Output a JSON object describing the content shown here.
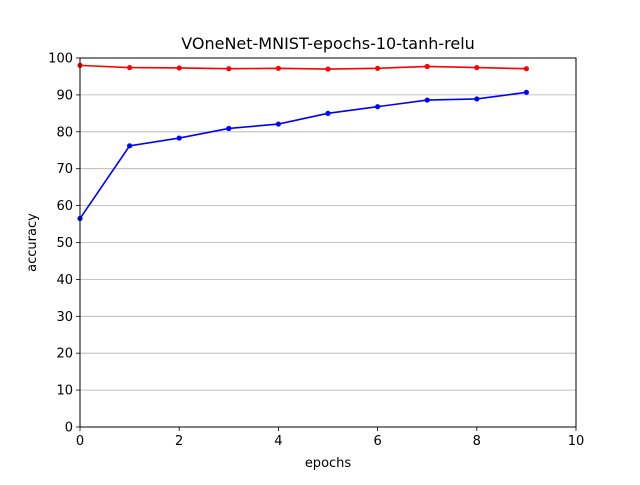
{
  "chart_data": {
    "type": "line",
    "title": "VOneNet-MNIST-epochs-10-tanh-relu",
    "xlabel": "epochs",
    "ylabel": "accuracy",
    "xlim": [
      0,
      10
    ],
    "ylim": [
      0,
      100
    ],
    "xticks": [
      0,
      2,
      4,
      6,
      8,
      10
    ],
    "yticks": [
      0,
      10,
      20,
      30,
      40,
      50,
      60,
      70,
      80,
      90,
      100
    ],
    "grid": "horizontal",
    "legend": "none",
    "x": [
      0,
      1,
      2,
      3,
      4,
      5,
      6,
      7,
      8,
      9
    ],
    "series": [
      {
        "color": "#ff0000",
        "marker": "dot",
        "values": [
          98.0,
          97.4,
          97.3,
          97.1,
          97.2,
          97.0,
          97.2,
          97.7,
          97.4,
          97.1
        ]
      },
      {
        "color": "#0000ff",
        "marker": "dot",
        "values": [
          56.5,
          76.2,
          78.3,
          80.9,
          82.1,
          85.0,
          86.8,
          88.6,
          88.9,
          90.7
        ]
      }
    ]
  }
}
